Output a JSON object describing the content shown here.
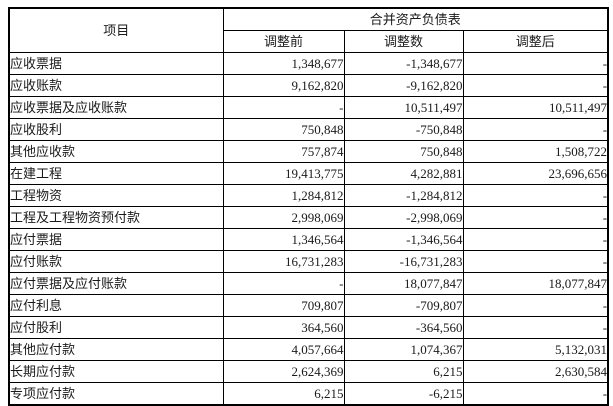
{
  "table": {
    "header": {
      "item_col": "项目",
      "group_col": "合并资产负债表",
      "before_col": "调整前",
      "adjustment_col": "调整数",
      "after_col": "调整后"
    },
    "rows": [
      {
        "item": "应收票据",
        "before": "1,348,677",
        "adjustment": "-1,348,677",
        "after": "-"
      },
      {
        "item": "应收账款",
        "before": "9,162,820",
        "adjustment": "-9,162,820",
        "after": "-"
      },
      {
        "item": "应收票据及应收账款",
        "before": "-",
        "adjustment": "10,511,497",
        "after": "10,511,497"
      },
      {
        "item": "应收股利",
        "before": "750,848",
        "adjustment": "-750,848",
        "after": "-"
      },
      {
        "item": "其他应收款",
        "before": "757,874",
        "adjustment": "750,848",
        "after": "1,508,722"
      },
      {
        "item": "在建工程",
        "before": "19,413,775",
        "adjustment": "4,282,881",
        "after": "23,696,656"
      },
      {
        "item": "工程物资",
        "before": "1,284,812",
        "adjustment": "-1,284,812",
        "after": "-"
      },
      {
        "item": "工程及工程物资预付款",
        "before": "2,998,069",
        "adjustment": "-2,998,069",
        "after": "-"
      },
      {
        "item": "应付票据",
        "before": "1,346,564",
        "adjustment": "-1,346,564",
        "after": "-"
      },
      {
        "item": "应付账款",
        "before": "16,731,283",
        "adjustment": "-16,731,283",
        "after": "-"
      },
      {
        "item": "应付票据及应付账款",
        "before": "-",
        "adjustment": "18,077,847",
        "after": "18,077,847"
      },
      {
        "item": "应付利息",
        "before": "709,807",
        "adjustment": "-709,807",
        "after": "-"
      },
      {
        "item": "应付股利",
        "before": "364,560",
        "adjustment": "-364,560",
        "after": "-"
      },
      {
        "item": "其他应付款",
        "before": "4,057,664",
        "adjustment": "1,074,367",
        "after": "5,132,031"
      },
      {
        "item": "长期应付款",
        "before": "2,624,369",
        "adjustment": "6,215",
        "after": "2,630,584"
      },
      {
        "item": "专项应付款",
        "before": "6,215",
        "adjustment": "-6,215",
        "after": "-"
      }
    ],
    "colors": {
      "border": "#000000",
      "text": "#1a1a1a",
      "background": "#ffffff"
    }
  }
}
